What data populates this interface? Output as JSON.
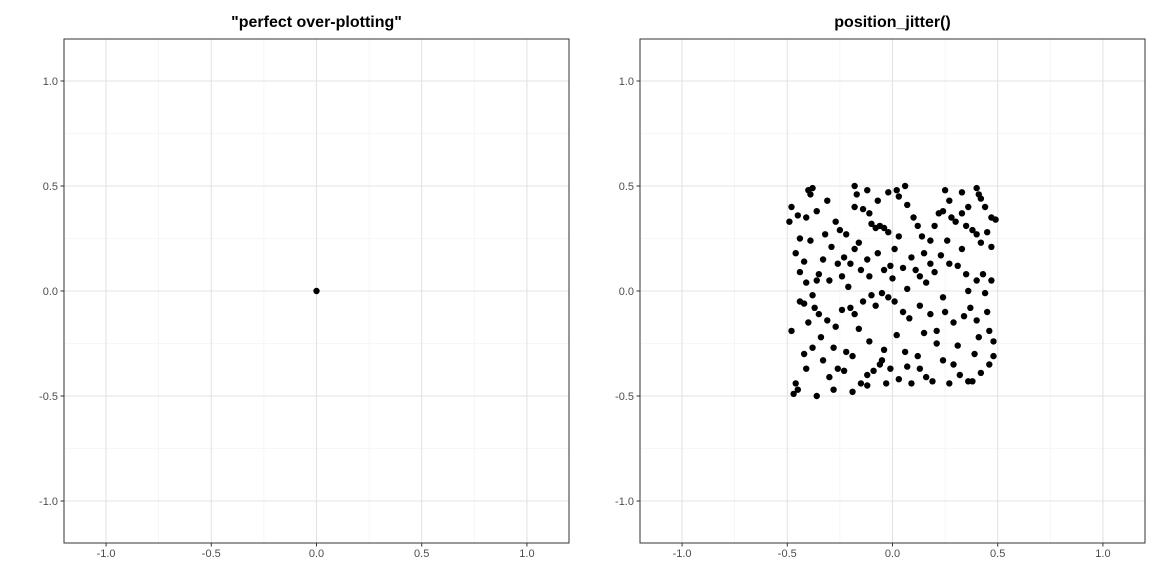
{
  "chart_data": [
    {
      "type": "scatter",
      "title": "\"perfect over-plotting\"",
      "xlabel": "",
      "ylabel": "",
      "xlim": [
        -1.2,
        1.2
      ],
      "ylim": [
        -1.2,
        1.2
      ],
      "x_ticks": [
        -1.0,
        -0.5,
        0.0,
        0.5,
        1.0
      ],
      "y_ticks": [
        -1.0,
        -0.5,
        0.0,
        0.5,
        1.0
      ],
      "x_tick_labels": [
        "-1.0",
        "-0.5",
        "0.0",
        "0.5",
        "1.0"
      ],
      "y_tick_labels": [
        "-1.0",
        "-0.5",
        "0.0",
        "0.5",
        "1.0"
      ],
      "grid": true,
      "point_color": "#000000",
      "points": [
        [
          0.0,
          0.0
        ]
      ]
    },
    {
      "type": "scatter",
      "title": "position_jitter()",
      "xlabel": "",
      "ylabel": "",
      "xlim": [
        -1.2,
        1.2
      ],
      "ylim": [
        -1.2,
        1.2
      ],
      "x_ticks": [
        -1.0,
        -0.5,
        0.0,
        0.5,
        1.0
      ],
      "y_ticks": [
        -1.0,
        -0.5,
        0.0,
        0.5,
        1.0
      ],
      "x_tick_labels": [
        "-1.0",
        "-0.5",
        "0.0",
        "0.5",
        "1.0"
      ],
      "y_tick_labels": [
        "-1.0",
        "-0.5",
        "0.0",
        "0.5",
        "1.0"
      ],
      "grid": true,
      "point_color": "#000000",
      "points": [
        [
          -0.48,
          0.4
        ],
        [
          -0.49,
          0.33
        ],
        [
          -0.41,
          0.35
        ],
        [
          -0.38,
          0.49
        ],
        [
          -0.4,
          0.48
        ],
        [
          -0.39,
          0.46
        ],
        [
          -0.36,
          0.38
        ],
        [
          -0.31,
          0.43
        ],
        [
          -0.18,
          0.5
        ],
        [
          -0.17,
          0.46
        ],
        [
          -0.12,
          0.48
        ],
        [
          -0.07,
          0.43
        ],
        [
          -0.02,
          0.47
        ],
        [
          0.02,
          0.48
        ],
        [
          0.03,
          0.45
        ],
        [
          0.06,
          0.5
        ],
        [
          0.07,
          0.41
        ],
        [
          0.25,
          0.48
        ],
        [
          0.27,
          0.43
        ],
        [
          0.33,
          0.47
        ],
        [
          0.36,
          0.4
        ],
        [
          0.4,
          0.49
        ],
        [
          0.41,
          0.46
        ],
        [
          0.42,
          0.44
        ],
        [
          0.44,
          0.4
        ],
        [
          0.47,
          0.35
        ],
        [
          0.49,
          0.34
        ],
        [
          -0.46,
          0.18
        ],
        [
          -0.44,
          0.25
        ],
        [
          -0.39,
          0.24
        ],
        [
          -0.33,
          0.15
        ],
        [
          -0.27,
          0.33
        ],
        [
          -0.25,
          0.29
        ],
        [
          -0.22,
          0.27
        ],
        [
          -0.18,
          0.4
        ],
        [
          -0.14,
          0.39
        ],
        [
          -0.11,
          0.37
        ],
        [
          -0.1,
          0.32
        ],
        [
          -0.08,
          0.3
        ],
        [
          -0.06,
          0.31
        ],
        [
          -0.04,
          0.3
        ],
        [
          -0.02,
          0.28
        ],
        [
          0.03,
          0.26
        ],
        [
          0.1,
          0.35
        ],
        [
          0.12,
          0.31
        ],
        [
          0.14,
          0.26
        ],
        [
          0.18,
          0.24
        ],
        [
          0.22,
          0.37
        ],
        [
          0.24,
          0.38
        ],
        [
          0.28,
          0.35
        ],
        [
          0.3,
          0.33
        ],
        [
          0.35,
          0.31
        ],
        [
          0.38,
          0.29
        ],
        [
          0.4,
          0.27
        ],
        [
          0.42,
          0.23
        ],
        [
          0.47,
          0.21
        ],
        [
          -0.44,
          0.09
        ],
        [
          -0.41,
          0.04
        ],
        [
          -0.36,
          0.05
        ],
        [
          -0.3,
          0.05
        ],
        [
          -0.26,
          0.13
        ],
        [
          -0.23,
          0.16
        ],
        [
          -0.2,
          0.13
        ],
        [
          -0.18,
          0.2
        ],
        [
          -0.15,
          0.1
        ],
        [
          -0.11,
          0.07
        ],
        [
          -0.04,
          0.1
        ],
        [
          -0.01,
          0.12
        ],
        [
          0.05,
          0.11
        ],
        [
          0.11,
          0.1
        ],
        [
          0.13,
          0.07
        ],
        [
          0.18,
          0.13
        ],
        [
          0.2,
          0.09
        ],
        [
          0.23,
          0.17
        ],
        [
          0.27,
          0.13
        ],
        [
          0.31,
          0.12
        ],
        [
          0.35,
          0.08
        ],
        [
          0.4,
          0.05
        ],
        [
          0.43,
          0.08
        ],
        [
          0.47,
          0.05
        ],
        [
          -0.48,
          -0.19
        ],
        [
          -0.44,
          -0.05
        ],
        [
          -0.42,
          -0.06
        ],
        [
          -0.4,
          -0.15
        ],
        [
          -0.37,
          -0.08
        ],
        [
          -0.35,
          -0.11
        ],
        [
          -0.31,
          -0.14
        ],
        [
          -0.27,
          -0.17
        ],
        [
          -0.24,
          -0.09
        ],
        [
          -0.2,
          -0.08
        ],
        [
          -0.18,
          -0.11
        ],
        [
          -0.14,
          -0.05
        ],
        [
          -0.1,
          -0.02
        ],
        [
          -0.05,
          -0.01
        ],
        [
          -0.02,
          -0.03
        ],
        [
          0.01,
          -0.05
        ],
        [
          0.05,
          -0.1
        ],
        [
          0.08,
          -0.13
        ],
        [
          0.13,
          -0.07
        ],
        [
          0.18,
          -0.11
        ],
        [
          0.21,
          -0.19
        ],
        [
          0.25,
          -0.1
        ],
        [
          0.29,
          -0.15
        ],
        [
          0.34,
          -0.12
        ],
        [
          0.37,
          -0.08
        ],
        [
          0.4,
          -0.14
        ],
        [
          0.45,
          -0.1
        ],
        [
          0.48,
          -0.24
        ],
        [
          -0.46,
          -0.44
        ],
        [
          -0.45,
          -0.47
        ],
        [
          -0.41,
          -0.37
        ],
        [
          -0.38,
          -0.27
        ],
        [
          -0.33,
          -0.33
        ],
        [
          -0.3,
          -0.41
        ],
        [
          -0.26,
          -0.37
        ],
        [
          -0.22,
          -0.29
        ],
        [
          -0.19,
          -0.31
        ],
        [
          -0.15,
          -0.44
        ],
        [
          -0.12,
          -0.4
        ],
        [
          -0.09,
          -0.38
        ],
        [
          -0.06,
          -0.35
        ],
        [
          -0.04,
          -0.28
        ],
        [
          -0.01,
          -0.37
        ],
        [
          0.03,
          -0.42
        ],
        [
          0.07,
          -0.36
        ],
        [
          0.12,
          -0.31
        ],
        [
          0.16,
          -0.41
        ],
        [
          0.21,
          -0.25
        ],
        [
          0.27,
          -0.44
        ],
        [
          0.32,
          -0.4
        ],
        [
          0.36,
          -0.43
        ],
        [
          0.39,
          -0.3
        ],
        [
          0.42,
          -0.39
        ],
        [
          0.46,
          -0.35
        ],
        [
          0.48,
          -0.31
        ],
        [
          -0.36,
          -0.5
        ],
        [
          -0.28,
          -0.47
        ],
        [
          -0.19,
          -0.48
        ],
        [
          -0.12,
          -0.45
        ],
        [
          -0.03,
          -0.44
        ],
        [
          0.09,
          -0.44
        ],
        [
          0.19,
          -0.43
        ],
        [
          0.38,
          -0.43
        ],
        [
          -0.47,
          -0.49
        ],
        [
          -0.45,
          0.36
        ],
        [
          -0.32,
          0.27
        ],
        [
          -0.16,
          0.23
        ],
        [
          0.01,
          0.2
        ],
        [
          0.15,
          0.18
        ],
        [
          0.33,
          0.2
        ],
        [
          0.45,
          0.28
        ],
        [
          -0.29,
          0.21
        ],
        [
          -0.07,
          0.18
        ],
        [
          0.09,
          0.16
        ],
        [
          0.26,
          0.24
        ],
        [
          -0.42,
          0.14
        ],
        [
          -0.24,
          0.07
        ],
        [
          0.0,
          0.06
        ],
        [
          0.16,
          0.04
        ],
        [
          0.36,
          0.0
        ],
        [
          -0.38,
          -0.02
        ],
        [
          -0.21,
          0.02
        ],
        [
          -0.08,
          -0.07
        ],
        [
          0.07,
          0.01
        ],
        [
          0.24,
          -0.03
        ],
        [
          0.44,
          -0.01
        ],
        [
          -0.34,
          -0.22
        ],
        [
          -0.16,
          -0.18
        ],
        [
          0.02,
          -0.21
        ],
        [
          0.15,
          -0.2
        ],
        [
          0.31,
          -0.26
        ],
        [
          0.46,
          -0.19
        ],
        [
          -0.28,
          -0.27
        ],
        [
          -0.11,
          -0.24
        ],
        [
          0.06,
          -0.29
        ],
        [
          0.24,
          -0.33
        ],
        [
          0.41,
          -0.22
        ],
        [
          -0.42,
          -0.3
        ],
        [
          -0.23,
          -0.38
        ],
        [
          -0.05,
          -0.33
        ],
        [
          0.13,
          -0.37
        ],
        [
          0.29,
          -0.35
        ],
        [
          -0.12,
          0.15
        ],
        [
          0.2,
          0.31
        ],
        [
          -0.35,
          0.08
        ],
        [
          0.33,
          0.37
        ]
      ]
    }
  ]
}
